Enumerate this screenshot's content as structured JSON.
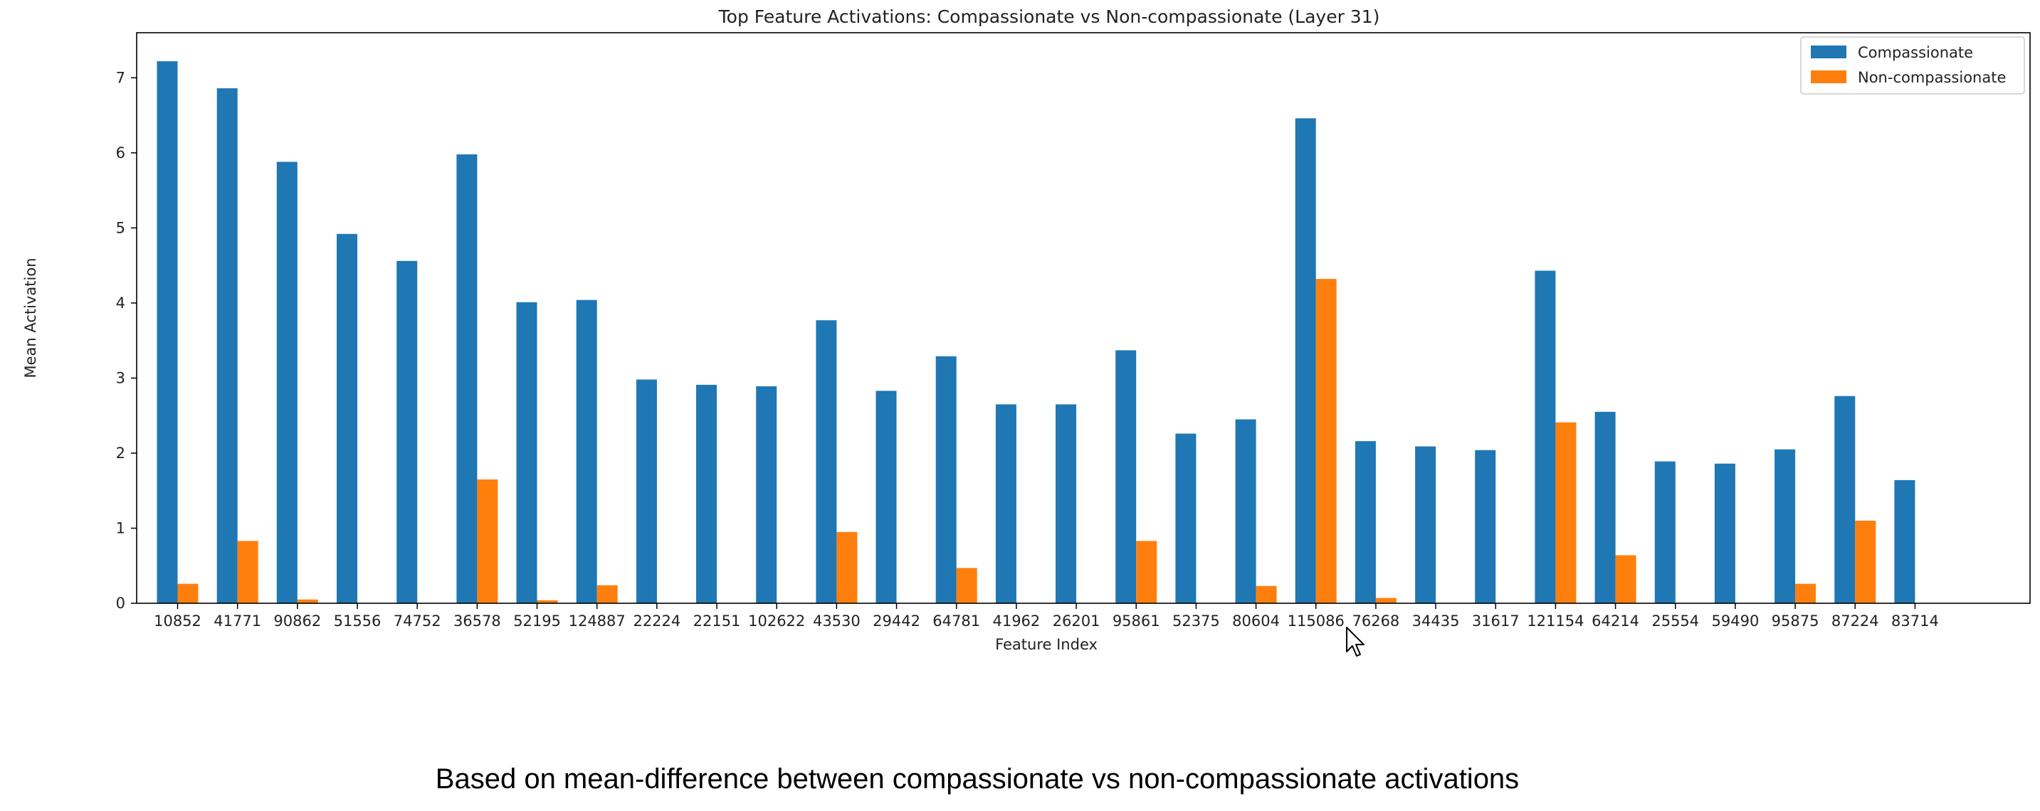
{
  "chart_data": {
    "type": "bar",
    "title": "Top Feature Activations: Compassionate vs Non-compassionate (Layer 31)",
    "xlabel": "Feature Index",
    "ylabel": "Mean Activation",
    "ylim": [
      0,
      7.6
    ],
    "yticks": [
      0,
      1,
      2,
      3,
      4,
      5,
      6,
      7
    ],
    "grid": false,
    "legend_position": "top-right",
    "categories": [
      "10852",
      "41771",
      "90862",
      "51556",
      "74752",
      "36578",
      "52195",
      "124887",
      "22224",
      "22151",
      "102622",
      "43530",
      "29442",
      "64781",
      "41962",
      "26201",
      "95861",
      "52375",
      "80604",
      "115086",
      "76268",
      "34435",
      "31617",
      "121154",
      "64214",
      "25554",
      "59490",
      "95875",
      "87224",
      "83714"
    ],
    "series": [
      {
        "name": "Compassionate",
        "color": "#1f77b4",
        "values": [
          7.22,
          6.86,
          5.88,
          4.92,
          4.56,
          5.98,
          4.01,
          4.04,
          2.98,
          2.91,
          2.89,
          3.77,
          2.83,
          3.29,
          2.65,
          2.65,
          3.37,
          2.26,
          2.45,
          6.46,
          2.16,
          2.09,
          2.04,
          4.43,
          2.55,
          1.89,
          1.86,
          2.05,
          2.76,
          1.64
        ]
      },
      {
        "name": "Non-compassionate",
        "color": "#ff7f0e",
        "values": [
          0.26,
          0.83,
          0.05,
          0.0,
          0.0,
          1.65,
          0.04,
          0.24,
          0.0,
          0.0,
          0.0,
          0.95,
          0.0,
          0.47,
          0.0,
          0.0,
          0.83,
          0.0,
          0.23,
          4.32,
          0.07,
          0.0,
          0.0,
          2.41,
          0.64,
          0.0,
          0.0,
          0.26,
          1.1,
          0.0
        ]
      }
    ]
  },
  "caption": "Based on mean-difference between compassionate vs non-compassionate activations"
}
